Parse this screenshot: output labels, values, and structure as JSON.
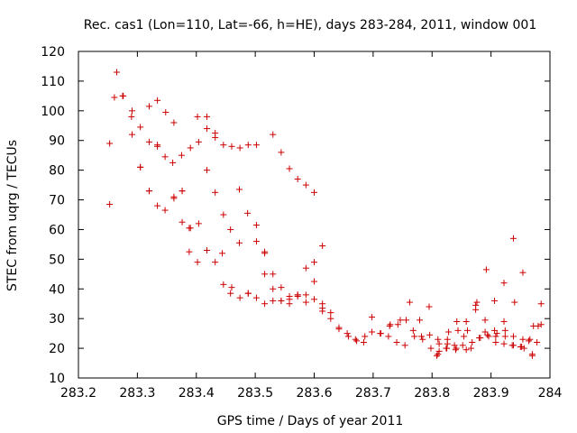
{
  "chart_data": {
    "type": "scatter",
    "title": "Rec. cas1 (Lon=110, Lat=-66, h=HE), days 283-284, 2011, window 001",
    "xlabel": "GPS time / Days of year 2011",
    "ylabel": "STEC from uqrg / TECUs",
    "xlim": [
      283.2,
      284.0
    ],
    "ylim": [
      10,
      120
    ],
    "xticks": [
      "283.2",
      "283.3",
      "283.4",
      "283.5",
      "283.6",
      "283.7",
      "283.8",
      "283.9",
      "284"
    ],
    "yticks": [
      "10",
      "20",
      "30",
      "40",
      "50",
      "60",
      "70",
      "80",
      "90",
      "100",
      "110",
      "120"
    ],
    "grid": false,
    "marker": "+",
    "color": "#cc0000",
    "series": [
      {
        "x": [
          283.253,
          283.261,
          283.275,
          283.29,
          283.305,
          283.32,
          283.334,
          283.348,
          283.362,
          283.375,
          283.39,
          283.404,
          283.418,
          283.432,
          283.446,
          283.46,
          283.474,
          283.488,
          283.502,
          283.516,
          283.53,
          283.544,
          283.558,
          283.572,
          283.586,
          283.6,
          283.614
        ],
        "y": [
          89,
          104.5,
          105,
          98,
          94.5,
          101.5,
          103.5,
          99.5,
          96,
          85,
          87.5,
          89.5,
          98,
          91,
          88.5,
          88,
          87.5,
          88.5,
          88.5,
          52.5,
          92,
          86,
          80.5,
          77,
          75,
          72.5,
          54.5
        ]
      },
      {
        "x": [
          283.265,
          283.276,
          283.291,
          283.305,
          283.32,
          283.334,
          283.347,
          283.36,
          283.376,
          283.388,
          283.402,
          283.418,
          283.432,
          283.446,
          283.458,
          283.473,
          283.487,
          283.502,
          283.516,
          283.53,
          283.544,
          283.558,
          283.572,
          283.586,
          283.6,
          283.614
        ],
        "y": [
          113,
          105,
          100,
          81,
          89.5,
          88,
          84.5,
          82.5,
          73,
          60.5,
          98,
          94,
          92.5,
          65,
          60,
          73.5,
          65.5,
          61.5,
          52,
          45,
          40.5,
          36.5,
          38,
          47,
          49,
          35
        ]
      },
      {
        "x": [
          283.253,
          283.291,
          283.305,
          283.32,
          283.334,
          283.347,
          283.362,
          283.376,
          283.388,
          283.402,
          283.418,
          283.432,
          283.444,
          283.458,
          283.473,
          283.488,
          283.502,
          283.516,
          283.53,
          283.544,
          283.558,
          283.572,
          283.586,
          283.6,
          283.614,
          283.628,
          283.642,
          283.658,
          283.672,
          283.686,
          283.698,
          283.713,
          283.728,
          283.742,
          283.756,
          283.77,
          283.784,
          283.798,
          283.812,
          283.826,
          283.84,
          283.854,
          283.868,
          283.882,
          283.896,
          283.91,
          283.924,
          283.938,
          283.952,
          283.966,
          283.98
        ],
        "y": [
          68.5,
          92,
          81,
          73,
          68,
          66.5,
          71,
          62.5,
          52.5,
          49,
          53,
          49,
          52,
          38.5,
          55.5,
          38.5,
          56,
          35,
          36,
          36,
          35,
          37.5,
          38,
          36.5,
          33.5,
          32,
          26.5,
          24,
          22.5,
          24,
          25.5,
          25,
          27.5,
          28,
          29.5,
          24,
          23,
          20,
          21.5,
          23,
          19.5,
          24,
          22,
          23.5,
          24,
          25,
          26,
          24,
          20.5,
          23,
          27.5
        ]
      },
      {
        "x": [
          283.32,
          283.334,
          283.362,
          283.376,
          283.39,
          283.404,
          283.418,
          283.432,
          283.446,
          283.46,
          283.474,
          283.488,
          283.502,
          283.516,
          283.53,
          283.544,
          283.558,
          283.572,
          283.586,
          283.6,
          283.614,
          283.628,
          283.642,
          283.656,
          283.67,
          283.684,
          283.698,
          283.712,
          283.726,
          283.74,
          283.754,
          283.768,
          283.782,
          283.796,
          283.81,
          283.824,
          283.838,
          283.852,
          283.866,
          283.88,
          283.894,
          283.908,
          283.922,
          283.936,
          283.95,
          283.964,
          283.978
        ],
        "y": [
          73,
          88.5,
          70.5,
          73,
          60.5,
          62,
          80,
          72.5,
          41.5,
          40.5,
          37,
          38.5,
          37,
          45,
          40,
          36,
          37.5,
          38,
          35.5,
          42.5,
          32.5,
          30,
          27,
          25,
          23,
          22,
          30.5,
          25,
          24,
          22,
          21,
          26,
          24,
          24.5,
          23,
          20,
          21,
          21,
          20,
          23.5,
          24.5,
          22,
          21.5,
          21,
          20.5,
          22.5,
          22
        ]
      },
      {
        "x": [
          283.729,
          283.746,
          283.762,
          283.779,
          283.795,
          283.81,
          283.826,
          283.842,
          283.858,
          283.874,
          283.89,
          283.906,
          283.922,
          283.938,
          283.954,
          283.97,
          283.985
        ],
        "y": [
          28,
          29.5,
          35.5,
          29.5,
          34,
          18,
          21.5,
          29,
          29,
          33,
          25.5,
          36,
          29,
          21,
          45.5,
          18,
          28
        ]
      },
      {
        "x": [
          283.808,
          283.825,
          283.841,
          283.858,
          283.874,
          283.89,
          283.906,
          283.922,
          283.938,
          283.954,
          283.97,
          283.985
        ],
        "y": [
          17.5,
          20,
          20,
          19.5,
          34.5,
          29.5,
          26,
          42,
          57,
          23,
          17.5,
          35
        ]
      },
      {
        "x": [
          283.812,
          283.828,
          283.844,
          283.86,
          283.876,
          283.892,
          283.908,
          283.924,
          283.94,
          283.956,
          283.972
        ],
        "y": [
          19,
          25.5,
          26,
          26,
          35.5,
          46.5,
          24,
          24,
          35.5,
          20,
          27.5
        ]
      }
    ]
  }
}
